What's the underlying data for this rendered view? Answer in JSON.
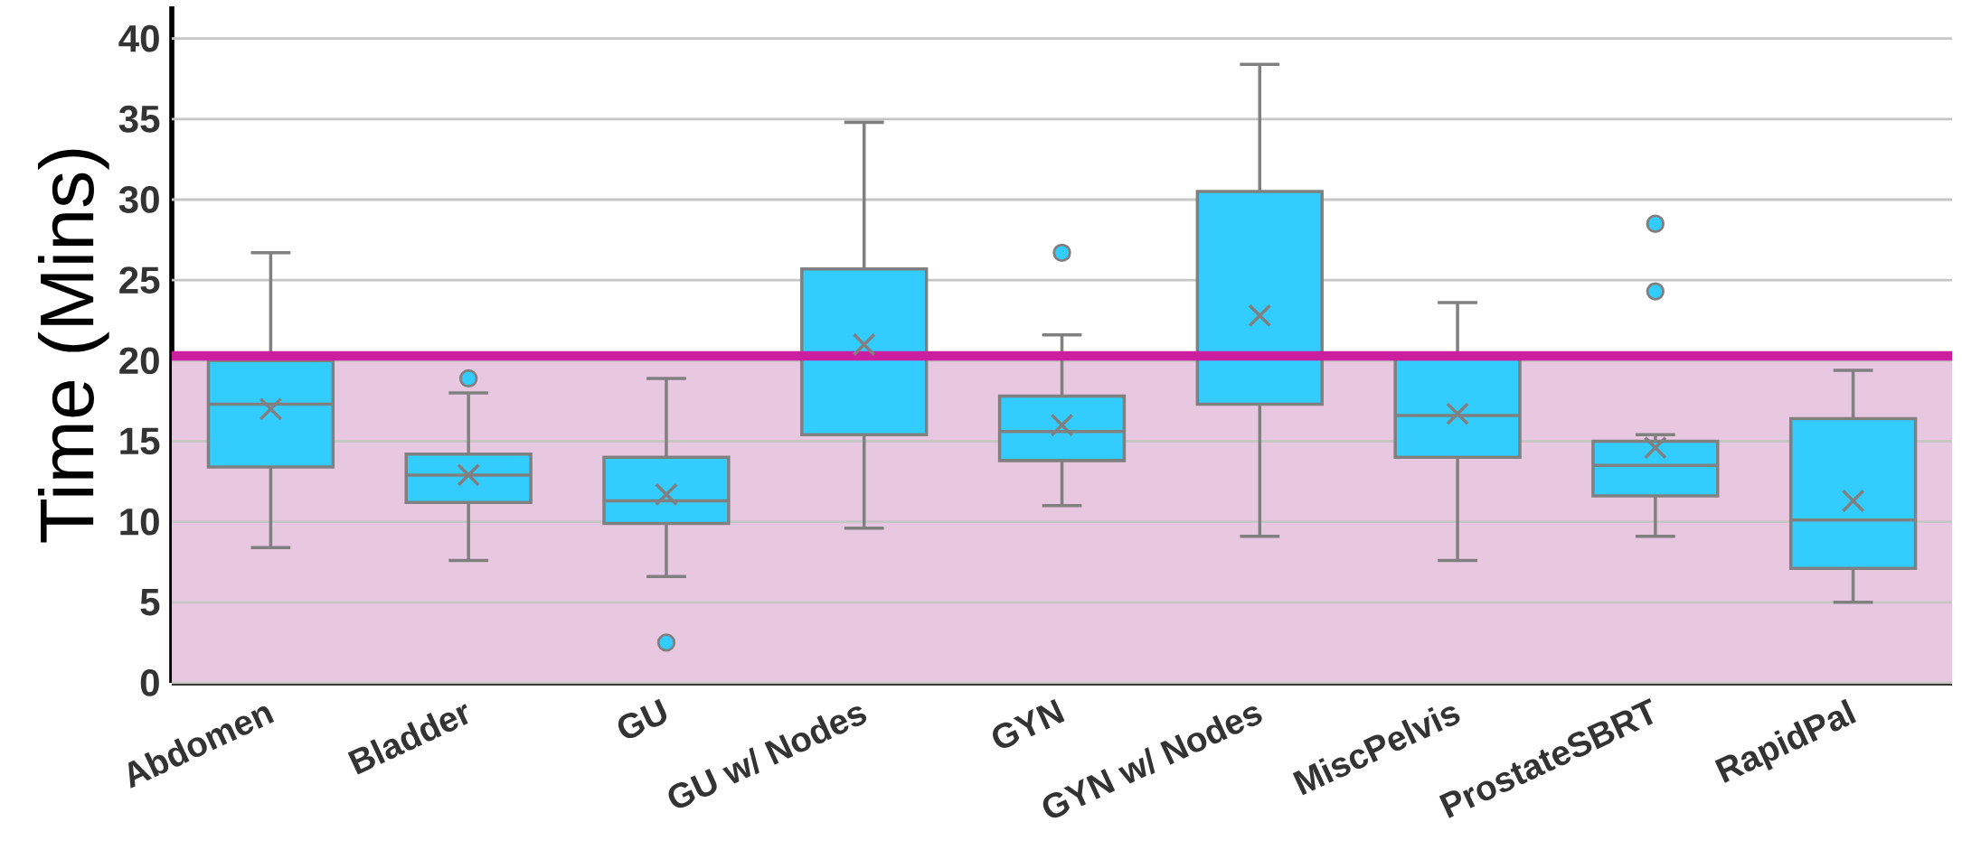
{
  "chart_data": {
    "type": "box",
    "ylabel": "Time (Mins)",
    "categories": [
      "Abdomen",
      "Bladder",
      "GU",
      "GU w/ Nodes",
      "GYN",
      "GYN w/ Nodes",
      "MiscPelvis",
      "ProstateSBRT",
      "RapidPal"
    ],
    "boxes": [
      {
        "low": 8.4,
        "q1": 13.4,
        "median": 17.3,
        "q3": 20.0,
        "high": 26.7,
        "mean": 17.0
      },
      {
        "low": 7.6,
        "q1": 11.2,
        "median": 12.9,
        "q3": 14.2,
        "high": 18.0,
        "mean": 12.9,
        "outliers": [
          18.9
        ]
      },
      {
        "low": 6.6,
        "q1": 9.9,
        "median": 11.3,
        "q3": 14.0,
        "high": 18.9,
        "mean": 11.7,
        "outliers": [
          2.5
        ]
      },
      {
        "low": 9.6,
        "q1": 15.4,
        "median": 20.3,
        "q3": 25.7,
        "high": 34.8,
        "mean": 21.0
      },
      {
        "low": 11.0,
        "q1": 13.8,
        "median": 15.6,
        "q3": 17.8,
        "high": 21.6,
        "mean": 16.0,
        "outliers": [
          26.7
        ]
      },
      {
        "low": 9.1,
        "q1": 17.3,
        "median": 20.3,
        "q3": 30.5,
        "high": 38.4,
        "mean": 22.8
      },
      {
        "low": 7.6,
        "q1": 14.0,
        "median": 16.6,
        "q3": 20.1,
        "high": 23.6,
        "mean": 16.7
      },
      {
        "low": 9.1,
        "q1": 11.6,
        "median": 13.5,
        "q3": 15.0,
        "high": 15.4,
        "mean": 14.6,
        "outliers": [
          24.3,
          28.5
        ]
      },
      {
        "low": 5.0,
        "q1": 7.1,
        "median": 10.1,
        "q3": 16.4,
        "high": 19.4,
        "mean": 11.3
      }
    ],
    "color": "#33ccff",
    "ylim": [
      0,
      42
    ],
    "yticks": [
      0,
      5,
      10,
      15,
      20,
      25,
      30,
      35,
      40
    ],
    "grid": "y",
    "bands": [
      {
        "axis": "y",
        "from": 0,
        "to": 20.3,
        "color": "#e8c8e0"
      }
    ],
    "ref_lines": [
      {
        "axis": "y",
        "value": 20.3,
        "color": "#cc1fa0"
      }
    ]
  }
}
